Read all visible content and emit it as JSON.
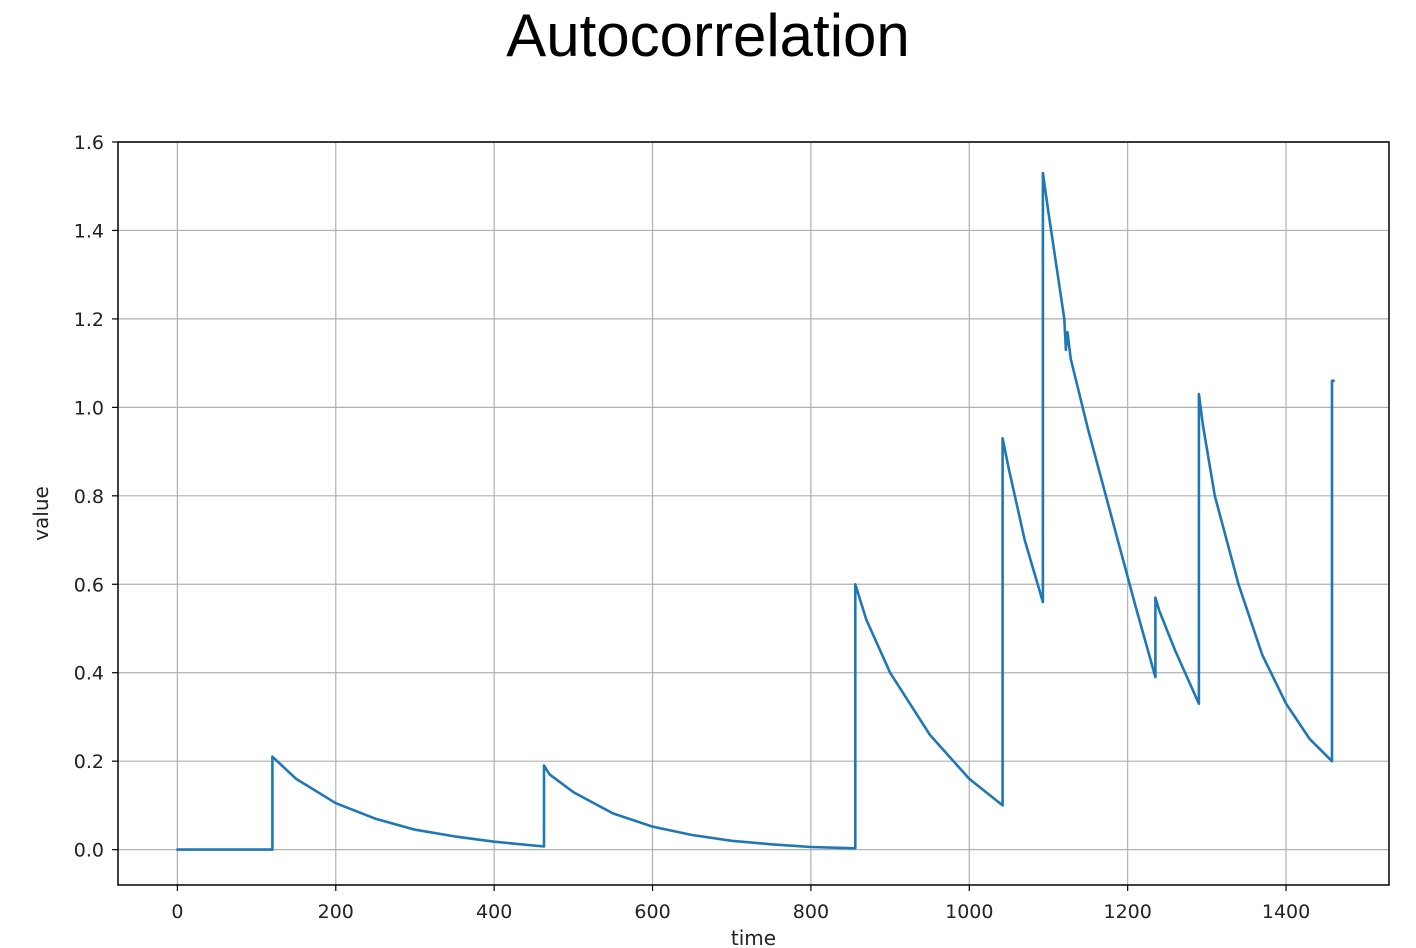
{
  "chart_data": {
    "type": "line",
    "title": "Autocorrelation",
    "xlabel": "time",
    "ylabel": "value",
    "xlim": [
      -75,
      1530
    ],
    "ylim": [
      -0.08,
      1.6
    ],
    "xticks": [
      0,
      200,
      400,
      600,
      800,
      1000,
      1200,
      1400
    ],
    "yticks": [
      0.0,
      0.2,
      0.4,
      0.6,
      0.8,
      1.0,
      1.2,
      1.4,
      1.6
    ],
    "grid": true,
    "line_color": "#1f77b4",
    "series": [
      {
        "x": [
          0,
          120,
          120,
          150,
          200,
          250,
          300,
          350,
          400,
          463,
          463,
          470,
          500,
          550,
          600,
          650,
          700,
          750,
          800,
          856,
          856,
          870,
          900,
          950,
          1000,
          1042,
          1042,
          1050,
          1070,
          1093,
          1093,
          1100,
          1120,
          1122,
          1124,
          1126,
          1128,
          1150,
          1180,
          1210,
          1235,
          1235,
          1240,
          1260,
          1290,
          1290,
          1295,
          1310,
          1340,
          1370,
          1400,
          1430,
          1458,
          1458,
          1460
        ],
        "y": [
          0.0,
          0.0,
          0.21,
          0.16,
          0.105,
          0.07,
          0.045,
          0.03,
          0.018,
          0.007,
          0.19,
          0.17,
          0.13,
          0.082,
          0.052,
          0.033,
          0.02,
          0.012,
          0.006,
          0.003,
          0.6,
          0.52,
          0.4,
          0.26,
          0.16,
          0.1,
          0.93,
          0.86,
          0.7,
          0.56,
          1.53,
          1.44,
          1.2,
          1.13,
          1.17,
          1.14,
          1.11,
          0.95,
          0.75,
          0.55,
          0.39,
          0.57,
          0.54,
          0.45,
          0.33,
          1.03,
          0.96,
          0.8,
          0.6,
          0.44,
          0.33,
          0.25,
          0.2,
          1.06,
          1.06
        ]
      }
    ]
  }
}
